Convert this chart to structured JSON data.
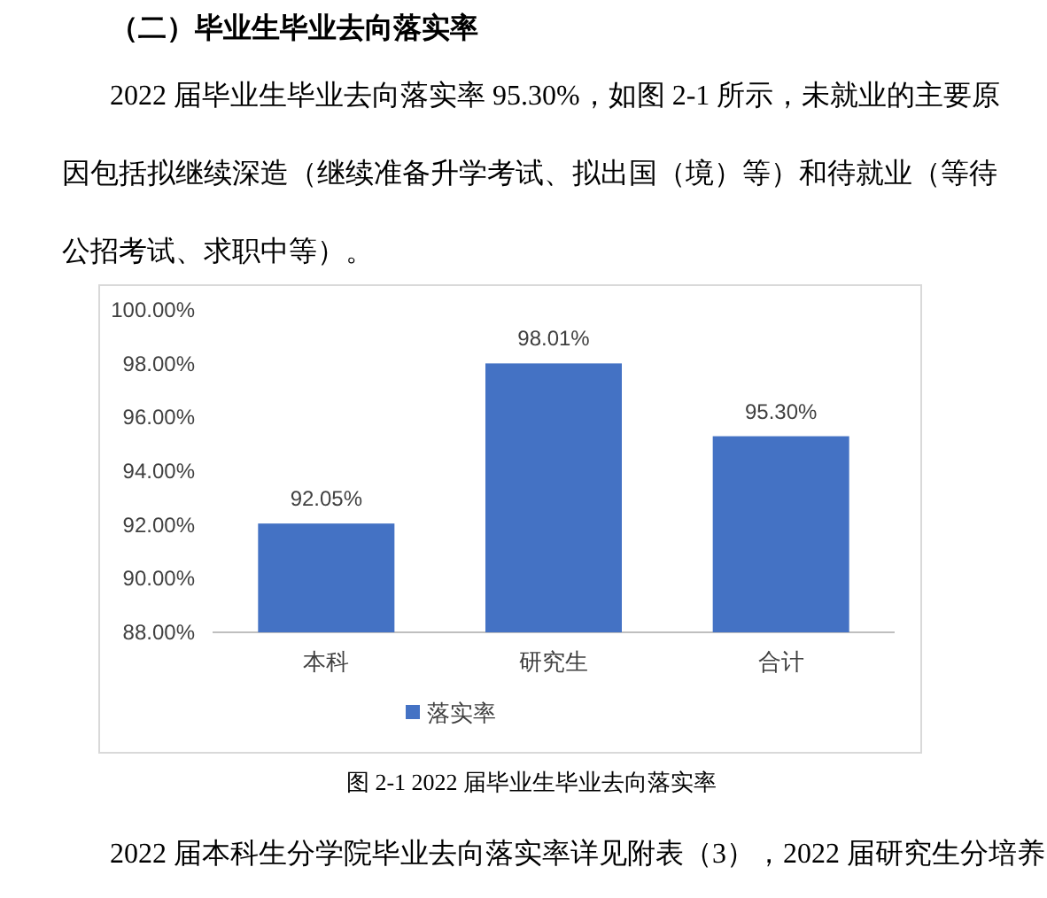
{
  "chart_data": {
    "type": "bar",
    "title": "（二）毕业生毕业去向落实率",
    "annotations": [
      "2022 届毕业生毕业去向落实率 95.30%，如图 2-1 所示，未就业的主要原因包括拟继续深造（继续准备升学考试、拟出国（境）等）和待就业（等待公招考试、求职中等）。",
      "图 2-1 2022 届毕业生毕业去向落实率",
      "2022 届本科生分学院毕业去向落实率详见附表（3），2022 届研究生分培养"
    ],
    "categories": [
      "本科",
      "研究生",
      "合计"
    ],
    "series": [
      {
        "name": "落实率",
        "color": "#4472c4",
        "values": [
          92.05,
          98.01,
          95.3
        ],
        "value_labels": [
          "92.05%",
          "98.01%",
          "95.30%"
        ]
      }
    ],
    "ylim": [
      88,
      100
    ],
    "yticks": [
      {
        "value": 88,
        "label": "88.00%"
      },
      {
        "value": 90,
        "label": "90.00%"
      },
      {
        "value": 92,
        "label": "92.00%"
      },
      {
        "value": 94,
        "label": "94.00%"
      },
      {
        "value": 96,
        "label": "96.00%"
      },
      {
        "value": 98,
        "label": "98.00%"
      },
      {
        "value": 100,
        "label": "100.00%"
      }
    ],
    "grid": false,
    "legend": "bottom"
  }
}
